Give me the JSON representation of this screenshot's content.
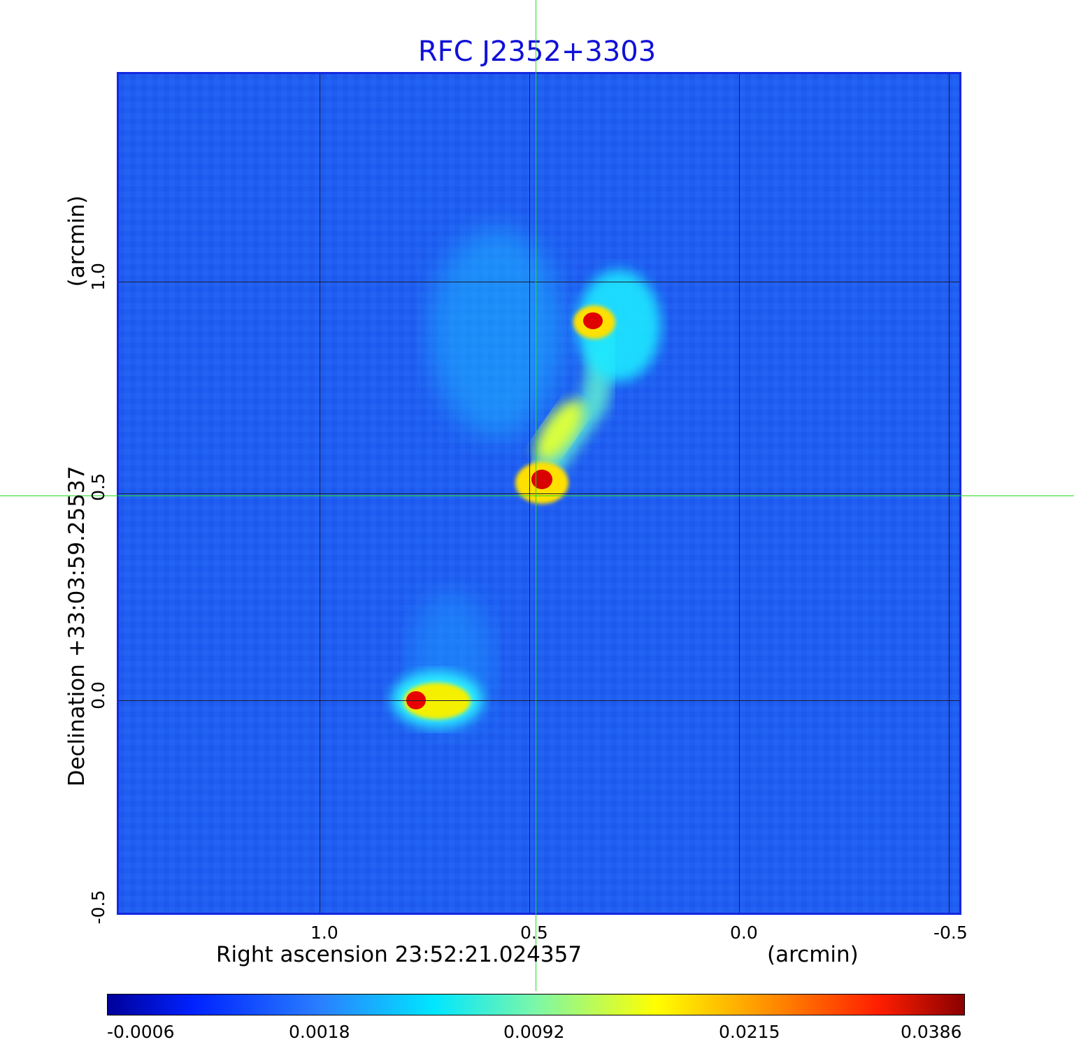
{
  "title": "RFC J2352+3303",
  "x_axis": {
    "label": "Right ascension  23:52:21.024357",
    "unit": "(arcmin)",
    "ticks": [
      "1.0",
      "0.5",
      "0.0",
      "-0.5"
    ]
  },
  "y_axis": {
    "label": "Declination  +33:03:59.25537",
    "unit": "(arcmin)",
    "ticks": [
      "-0.5",
      "0.0",
      "0.5",
      "1.0"
    ]
  },
  "colorbar": {
    "ticks": [
      "-0.0006",
      "0.0018",
      "0.0092",
      "0.0215",
      "0.0386"
    ]
  },
  "colors": {
    "background_blue": "#1f5cf0",
    "title": "#1010d8",
    "crosshair": "#22dd22"
  }
}
